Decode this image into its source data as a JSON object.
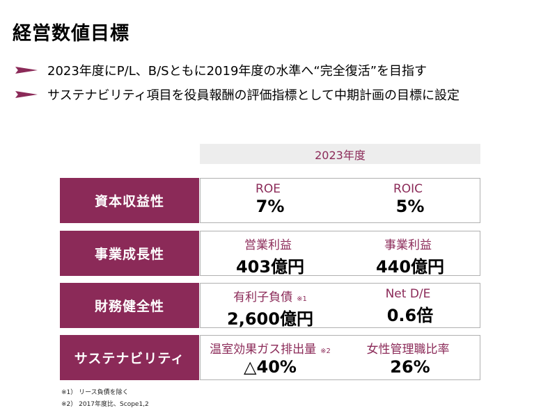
{
  "title": "経営数値目標",
  "bullets": [
    "2023年度にP/L、B/Sともに2019年度の水準へ“完全復活”を目指す",
    "サステナビリティ項目を役員報酬の評価指標として中期計画の目標に設定"
  ],
  "table": {
    "year_header": "2023年度",
    "rows": [
      {
        "category": "資本収益性",
        "left": {
          "label": "ROE",
          "note": "",
          "value": "7%"
        },
        "right": {
          "label": "ROIC",
          "note": "",
          "value": "5%"
        }
      },
      {
        "category": "事業成長性",
        "left": {
          "label": "営業利益",
          "note": "",
          "value": "403億円"
        },
        "right": {
          "label": "事業利益",
          "note": "",
          "value": "440億円"
        }
      },
      {
        "category": "財務健全性",
        "left": {
          "label": "有利子負債",
          "note": "※1",
          "value": "2,600億円"
        },
        "right": {
          "label": "Net D/E",
          "note": "",
          "value": "0.6倍"
        }
      },
      {
        "category": "サステナビリティ",
        "left": {
          "label": "温室効果ガス排出量",
          "note": "※2",
          "value": "△40%"
        },
        "right": {
          "label": "女性管理職比率",
          "note": "",
          "value": "26%"
        }
      }
    ]
  },
  "footnotes": [
    "※1） リース負債を除く",
    "※2） 2017年度比、Scope1,2"
  ],
  "colors": {
    "accent": "#8b2a58",
    "header_bg": "#ededed"
  }
}
